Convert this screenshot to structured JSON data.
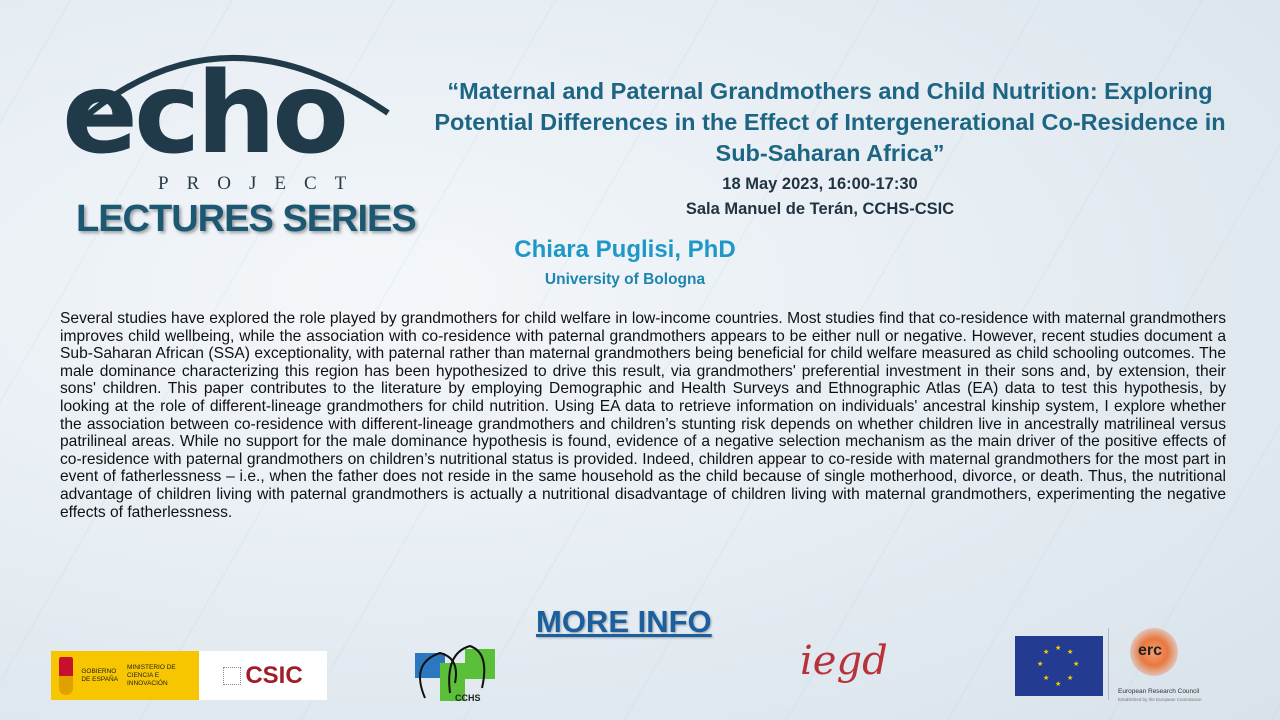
{
  "logo": {
    "echo": "echo",
    "project": "PROJECT",
    "series": "LECTURES SERIES"
  },
  "lecture": {
    "title": "“Maternal and Paternal Grandmothers and Child Nutrition: Exploring Potential Differences in the Effect of Intergenerational Co-Residence in Sub-Saharan Africa”",
    "date": "18 May 2023, 16:00-17:30",
    "venue": "Sala Manuel de Terán, CCHS-CSIC",
    "speaker": "Chiara Puglisi, PhD",
    "affiliation": "University of Bologna"
  },
  "abstract": "Several studies have explored the role played by grandmothers for child welfare in low-income countries. Most studies find that co-residence with maternal grandmothers improves child wellbeing, while the association with co-residence with paternal grandmothers appears to be either null or negative. However, recent studies document a Sub-Saharan African (SSA) exceptionality, with paternal rather than maternal grandmothers being beneficial for child welfare measured as child schooling outcomes. The male dominance characterizing this region has been hypothesized to drive this result, via grandmothers' preferential investment in their sons and, by extension, their sons' children. This paper contributes to the literature by employing Demographic and Health Surveys and Ethnographic Atlas (EA) data to test this hypothesis, by looking at the role of different-lineage grandmothers for child nutrition. Using EA data to retrieve information on individuals' ancestral kinship system, I explore whether the association between co-residence with different-lineage grandmothers and children’s stunting risk depends on whether children live in ancestrally matrilineal versus patrilineal areas. While no support for the male dominance hypothesis is found, evidence of a negative selection mechanism as the main driver of the positive effects of co-residence with paternal grandmothers on children’s nutritional status is provided. Indeed, children appear to co-reside with maternal grandmothers for the most part in event of fatherlessness – i.e., when the father does not reside in the same household as the child because of single motherhood, divorce, or death. Thus, the nutritional advantage of children living with paternal grandmothers is actually a nutritional disadvantage of children living with maternal grandmothers, experimenting the negative effects of fatherlessness.",
  "more_info": "MORE INFO",
  "sponsors": {
    "gobierno": "GOBIERNO DE ESPAÑA",
    "ministerio": "MINISTERIO DE CIENCIA E INNOVACIÓN",
    "csic": "CSIC",
    "cchs": "CCHS",
    "iegd": "iegd",
    "erc": "erc",
    "erc_name": "European Research Council",
    "erc_sub": "Established by the European Commission"
  },
  "colors": {
    "title": "#1d6583",
    "speaker": "#1e98c6",
    "link": "#1b5f9e",
    "logo": "#213a4a"
  }
}
